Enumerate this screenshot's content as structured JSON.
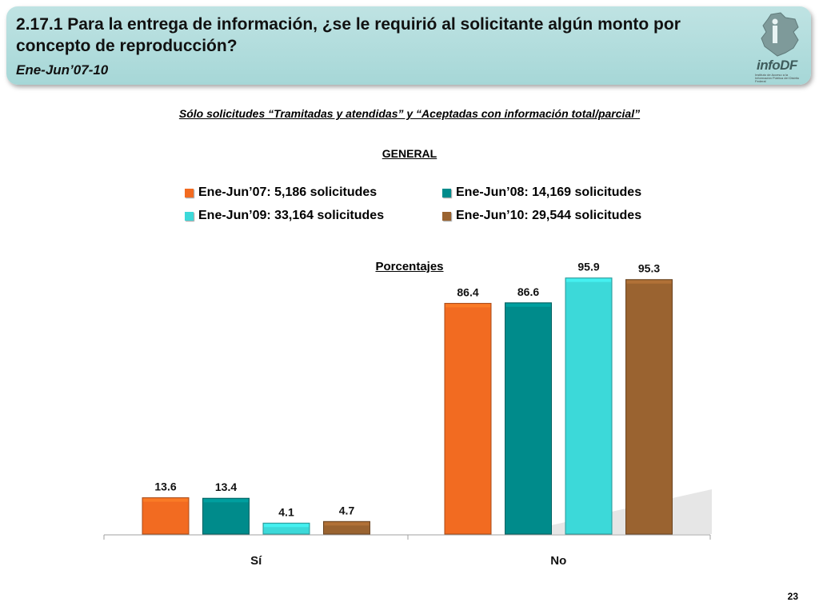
{
  "header": {
    "title": "2.17.1 Para la entrega de información, ¿se le requirió al solicitante algún monto por concepto de reproducción?",
    "period": "Ene-Jun’07-10",
    "logo_text": "infoDF",
    "logo_small": "Instituto de Acceso a la Información Pública del Distrito Federal"
  },
  "subtitle": "Sólo solicitudes “Tramitadas y atendidas” y “Aceptadas con información total/parcial”",
  "general_label": "GENERAL",
  "percent_label": "Porcentajes",
  "page_number": "23",
  "legend": [
    {
      "label": "Ene-Jun’07: 5,186 solicitudes",
      "color": "#f26b21"
    },
    {
      "label": "Ene-Jun’08: 14,169 solicitudes",
      "color": "#008b8b"
    },
    {
      "label": "Ene-Jun’09: 33,164 solicitudes",
      "color": "#3cd9d9"
    },
    {
      "label": "Ene-Jun’10: 29,544 solicitudes",
      "color": "#9a6330"
    }
  ],
  "chart_data": {
    "type": "bar",
    "title": "Porcentajes",
    "categories": [
      "Sí",
      "No"
    ],
    "series": [
      {
        "name": "Ene-Jun’07: 5,186 solicitudes",
        "values": [
          13.6,
          86.4
        ],
        "color": "#f26b21"
      },
      {
        "name": "Ene-Jun’08: 14,169 solicitudes",
        "values": [
          13.4,
          86.6
        ],
        "color": "#008b8b"
      },
      {
        "name": "Ene-Jun’09: 33,164 solicitudes",
        "values": [
          4.1,
          95.9
        ],
        "color": "#3cd9d9"
      },
      {
        "name": "Ene-Jun’10: 29,544 solicitudes",
        "values": [
          4.7,
          95.3
        ],
        "color": "#9a6330"
      }
    ],
    "ylim": [
      0,
      100
    ],
    "xlabel": "",
    "ylabel": "",
    "grid": false,
    "legend_position": "top"
  }
}
